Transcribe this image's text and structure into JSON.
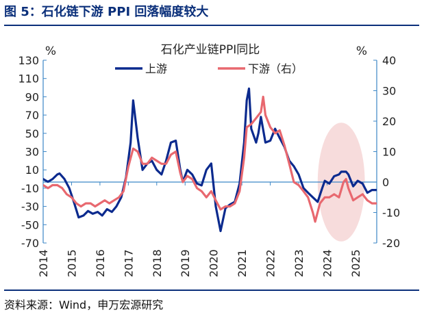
{
  "figure": {
    "title": "图 5：石化链下游 PPI 回落幅度较大",
    "source": "资料来源：Wind，申万宏源研究"
  },
  "colors": {
    "upstream": "#0b2a8e",
    "downstream": "#e8686f",
    "rule": "#0a2f7a",
    "highlight": "#f7dcdc"
  },
  "chart_data": {
    "type": "line",
    "title": "石化产业链PPI同比",
    "left_unit": "%",
    "right_unit": "%",
    "ylim_left": [
      -70,
      130
    ],
    "ylim_right": [
      -20,
      40
    ],
    "yticks_left": [
      130,
      110,
      90,
      70,
      50,
      30,
      10,
      -10,
      -30,
      -50,
      -70
    ],
    "yticks_right": [
      40,
      30,
      20,
      10,
      0,
      -10,
      -20
    ],
    "xlim": [
      2014,
      2025.75
    ],
    "xticks": [
      "2014",
      "2015",
      "2016",
      "2017",
      "2018",
      "2019",
      "2020",
      "2021",
      "2022",
      "2023",
      "2024",
      "2025"
    ],
    "legend": "top",
    "highlight_region": {
      "x_center": 2024.5,
      "x_radius": 0.83,
      "y_right_center": 0,
      "y_right_radius": 19.5
    },
    "series": [
      {
        "name": "上游",
        "axis": "left",
        "points": [
          [
            2014.0,
            0
          ],
          [
            2014.17,
            -3
          ],
          [
            2014.33,
            0
          ],
          [
            2014.5,
            5
          ],
          [
            2014.58,
            6
          ],
          [
            2014.75,
            0
          ],
          [
            2014.92,
            -10
          ],
          [
            2015.08,
            -25
          ],
          [
            2015.25,
            -42
          ],
          [
            2015.42,
            -40
          ],
          [
            2015.58,
            -35
          ],
          [
            2015.75,
            -38
          ],
          [
            2015.92,
            -36
          ],
          [
            2016.08,
            -40
          ],
          [
            2016.25,
            -33
          ],
          [
            2016.42,
            -36
          ],
          [
            2016.58,
            -30
          ],
          [
            2016.75,
            -20
          ],
          [
            2016.92,
            2
          ],
          [
            2017.08,
            40
          ],
          [
            2017.17,
            86
          ],
          [
            2017.33,
            45
          ],
          [
            2017.5,
            10
          ],
          [
            2017.67,
            17
          ],
          [
            2017.83,
            20
          ],
          [
            2018.0,
            10
          ],
          [
            2018.17,
            5
          ],
          [
            2018.33,
            20
          ],
          [
            2018.5,
            40
          ],
          [
            2018.67,
            42
          ],
          [
            2018.83,
            10
          ],
          [
            2018.92,
            -3
          ],
          [
            2019.08,
            10
          ],
          [
            2019.25,
            5
          ],
          [
            2019.42,
            -5
          ],
          [
            2019.58,
            -7
          ],
          [
            2019.75,
            10
          ],
          [
            2019.92,
            17
          ],
          [
            2020.08,
            -30
          ],
          [
            2020.25,
            -57
          ],
          [
            2020.42,
            -32
          ],
          [
            2020.58,
            -28
          ],
          [
            2020.75,
            -25
          ],
          [
            2020.92,
            -5
          ],
          [
            2021.08,
            40
          ],
          [
            2021.17,
            86
          ],
          [
            2021.25,
            99
          ],
          [
            2021.33,
            55
          ],
          [
            2021.5,
            40
          ],
          [
            2021.58,
            50
          ],
          [
            2021.67,
            68
          ],
          [
            2021.83,
            40
          ],
          [
            2022.0,
            42
          ],
          [
            2022.17,
            55
          ],
          [
            2022.33,
            45
          ],
          [
            2022.5,
            35
          ],
          [
            2022.67,
            20
          ],
          [
            2022.83,
            14
          ],
          [
            2023.0,
            5
          ],
          [
            2023.17,
            -10
          ],
          [
            2023.33,
            -15
          ],
          [
            2023.5,
            -20
          ],
          [
            2023.67,
            -25
          ],
          [
            2023.83,
            -10
          ],
          [
            2023.92,
            -2
          ],
          [
            2024.08,
            -5
          ],
          [
            2024.25,
            3
          ],
          [
            2024.42,
            5
          ],
          [
            2024.5,
            8
          ],
          [
            2024.67,
            8
          ],
          [
            2024.75,
            5
          ],
          [
            2024.92,
            -8
          ],
          [
            2025.08,
            -2
          ],
          [
            2025.25,
            -5
          ],
          [
            2025.42,
            -15
          ],
          [
            2025.58,
            -12
          ],
          [
            2025.75,
            -12
          ]
        ]
      },
      {
        "name": "下游（右）",
        "axis": "right",
        "points": [
          [
            2014.0,
            -1
          ],
          [
            2014.17,
            -2
          ],
          [
            2014.33,
            -1
          ],
          [
            2014.5,
            -1
          ],
          [
            2014.67,
            -2
          ],
          [
            2014.83,
            -4
          ],
          [
            2015.0,
            -5
          ],
          [
            2015.17,
            -7
          ],
          [
            2015.33,
            -8
          ],
          [
            2015.5,
            -7
          ],
          [
            2015.67,
            -7
          ],
          [
            2015.83,
            -8
          ],
          [
            2016.0,
            -7
          ],
          [
            2016.17,
            -6
          ],
          [
            2016.33,
            -7
          ],
          [
            2016.5,
            -6
          ],
          [
            2016.67,
            -5
          ],
          [
            2016.83,
            -3
          ],
          [
            2017.0,
            5
          ],
          [
            2017.17,
            11
          ],
          [
            2017.33,
            10
          ],
          [
            2017.5,
            6
          ],
          [
            2017.67,
            6
          ],
          [
            2017.83,
            8
          ],
          [
            2018.0,
            7
          ],
          [
            2018.17,
            6
          ],
          [
            2018.33,
            6
          ],
          [
            2018.5,
            9
          ],
          [
            2018.67,
            10
          ],
          [
            2018.83,
            3
          ],
          [
            2018.92,
            0
          ],
          [
            2019.08,
            2
          ],
          [
            2019.25,
            1
          ],
          [
            2019.42,
            -2
          ],
          [
            2019.58,
            -3
          ],
          [
            2019.75,
            -5
          ],
          [
            2019.92,
            -3
          ],
          [
            2020.08,
            -6
          ],
          [
            2020.25,
            -9
          ],
          [
            2020.42,
            -8
          ],
          [
            2020.58,
            -8
          ],
          [
            2020.75,
            -7
          ],
          [
            2020.92,
            -3
          ],
          [
            2021.08,
            8
          ],
          [
            2021.17,
            18
          ],
          [
            2021.33,
            19
          ],
          [
            2021.5,
            21
          ],
          [
            2021.67,
            23
          ],
          [
            2021.75,
            28
          ],
          [
            2021.83,
            22
          ],
          [
            2022.0,
            18
          ],
          [
            2022.17,
            16
          ],
          [
            2022.33,
            17
          ],
          [
            2022.5,
            12
          ],
          [
            2022.67,
            6
          ],
          [
            2022.83,
            0
          ],
          [
            2023.0,
            -1
          ],
          [
            2023.17,
            -3
          ],
          [
            2023.33,
            -5
          ],
          [
            2023.5,
            -10
          ],
          [
            2023.58,
            -13
          ],
          [
            2023.75,
            -7
          ],
          [
            2023.92,
            -5
          ],
          [
            2024.08,
            -5
          ],
          [
            2024.25,
            -4
          ],
          [
            2024.42,
            -5
          ],
          [
            2024.58,
            0
          ],
          [
            2024.67,
            1
          ],
          [
            2024.75,
            -2
          ],
          [
            2024.92,
            -6
          ],
          [
            2025.08,
            -5
          ],
          [
            2025.25,
            -4
          ],
          [
            2025.42,
            -6
          ],
          [
            2025.58,
            -7
          ],
          [
            2025.75,
            -7
          ]
        ]
      }
    ]
  }
}
